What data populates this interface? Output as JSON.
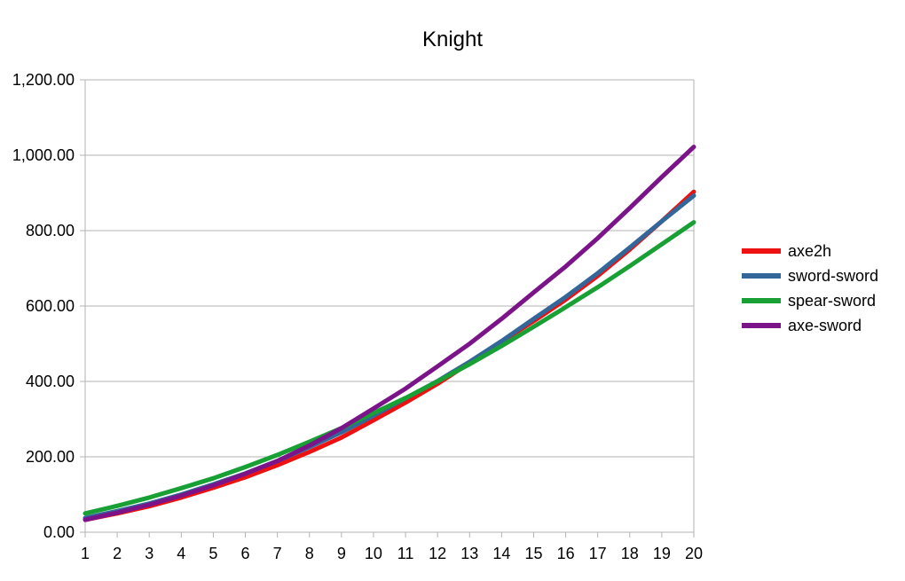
{
  "chart_data": {
    "type": "line",
    "title": "Knight",
    "xlabel": "",
    "ylabel": "",
    "x": [
      1,
      2,
      3,
      4,
      5,
      6,
      7,
      8,
      9,
      10,
      11,
      12,
      13,
      14,
      15,
      16,
      17,
      18,
      19,
      20
    ],
    "ylim": [
      0,
      1200
    ],
    "yticks": [
      0,
      200,
      400,
      600,
      800,
      1000,
      1200
    ],
    "ytick_labels": [
      "0.00",
      "200.00",
      "400.00",
      "600.00",
      "800.00",
      "1,000.00",
      "1,200.00"
    ],
    "grid": true,
    "legend_position": "right",
    "series": [
      {
        "name": "axe2h",
        "color": "#ee1111",
        "values": [
          33,
          50,
          69,
          92,
          118,
          146,
          178,
          213,
          251,
          297,
          344,
          394,
          449,
          506,
          560,
          617,
          680,
          750,
          825,
          903
        ]
      },
      {
        "name": "sword-sword",
        "color": "#336699",
        "values": [
          38,
          56,
          76,
          100,
          127,
          156,
          189,
          226,
          265,
          309,
          355,
          401,
          452,
          507,
          566,
          624,
          687,
          755,
          825,
          893
        ]
      },
      {
        "name": "spear-sword",
        "color": "#19a035",
        "values": [
          50,
          70,
          92,
          117,
          143,
          173,
          205,
          240,
          276,
          316,
          356,
          400,
          446,
          494,
          545,
          597,
          650,
          706,
          764,
          822
        ]
      },
      {
        "name": "axe-sword",
        "color": "#7b1489",
        "values": [
          33,
          52,
          73,
          97,
          124,
          155,
          189,
          230,
          276,
          328,
          381,
          440,
          500,
          566,
          636,
          705,
          780,
          860,
          942,
          1022
        ]
      }
    ]
  }
}
